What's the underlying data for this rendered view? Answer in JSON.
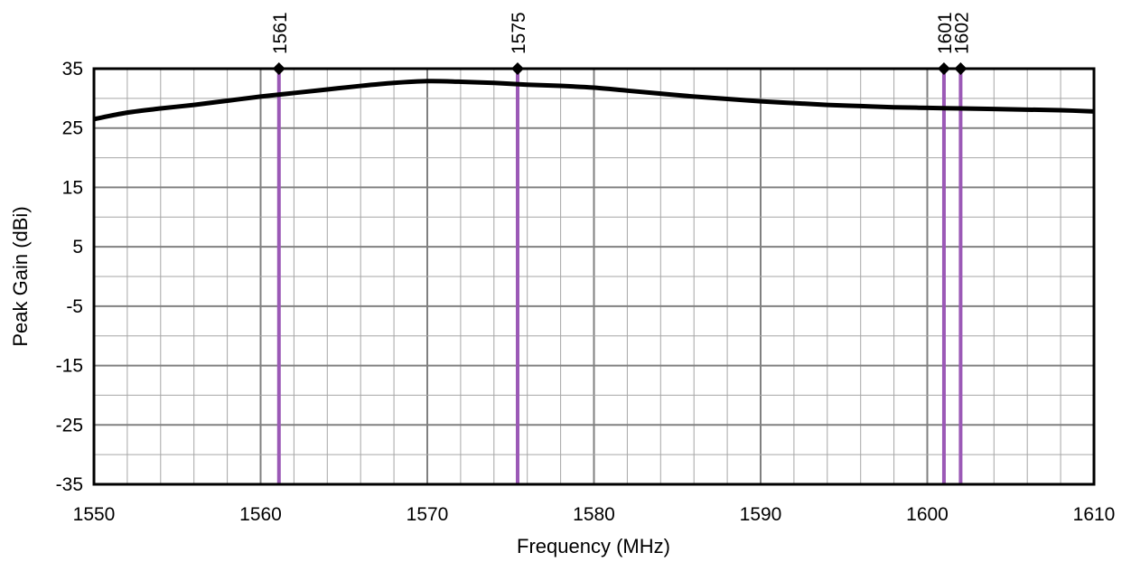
{
  "chart_data": {
    "type": "line",
    "xlabel": "Frequency (MHz)",
    "ylabel": "Peak Gain (dBi)",
    "xlim": [
      1550,
      1610
    ],
    "ylim": [
      -35,
      35
    ],
    "x_ticks": [
      "1550",
      "1560",
      "1570",
      "1580",
      "1590",
      "1600",
      "1610"
    ],
    "y_ticks": [
      "35",
      "25",
      "15",
      "5",
      "-5",
      "-15",
      "-25",
      "-35"
    ],
    "grid": true,
    "series": [
      {
        "color": "#000000",
        "x": [
          1550,
          1552,
          1554,
          1556,
          1558,
          1560,
          1562,
          1564,
          1566,
          1568,
          1570,
          1572,
          1574,
          1576,
          1578,
          1580,
          1582,
          1584,
          1586,
          1588,
          1590,
          1592,
          1594,
          1596,
          1598,
          1600,
          1602,
          1604,
          1606,
          1608,
          1610
        ],
        "y": [
          26.5,
          27.6,
          28.3,
          28.9,
          29.6,
          30.3,
          30.9,
          31.5,
          32.1,
          32.6,
          32.9,
          32.8,
          32.6,
          32.3,
          32.1,
          31.8,
          31.3,
          30.8,
          30.3,
          29.9,
          29.5,
          29.2,
          28.9,
          28.7,
          28.5,
          28.4,
          28.3,
          28.2,
          28.1,
          28.0,
          27.8
        ]
      }
    ],
    "markers": [
      {
        "label": "1561",
        "x": 1561.1
      },
      {
        "label": "1575",
        "x": 1575.42
      },
      {
        "label": "1601",
        "x": 1601.0
      },
      {
        "label": "1602",
        "x": 1602.0
      }
    ],
    "colors": {
      "curve": "#000000",
      "marker": "#9b59b6",
      "marker_diamond": "#000000",
      "grid_major": "#808080",
      "grid_minor": "#a6a6a6",
      "frame": "#000000"
    }
  }
}
